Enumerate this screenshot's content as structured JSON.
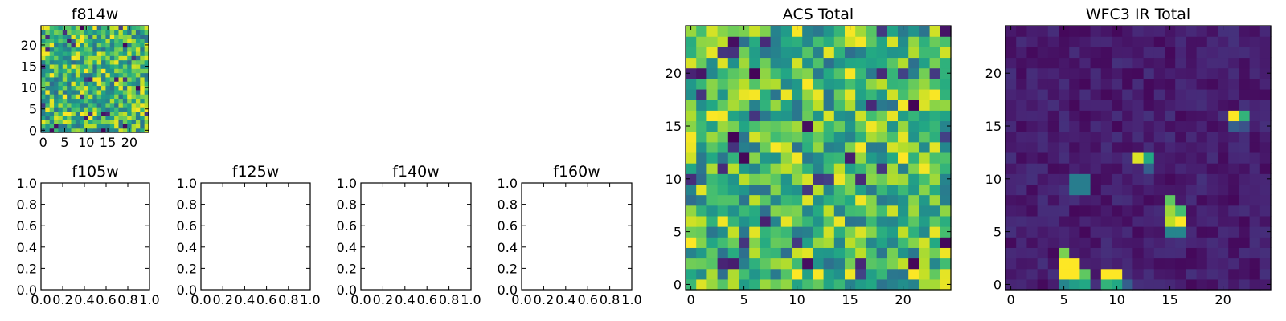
{
  "chart_data": [
    {
      "type": "heatmap",
      "title": "f814w",
      "colormap": "viridis",
      "xlim": [
        -0.5,
        24.5
      ],
      "ylim": [
        -0.5,
        24.5
      ],
      "xticks": [
        "0",
        "5",
        "10",
        "15",
        "20"
      ],
      "yticks": [
        "0",
        "5",
        "10",
        "15",
        "20"
      ],
      "grid_size": 25,
      "value_range": [
        0,
        1
      ],
      "pattern": "dense random noise, mostly high values (green/yellow) with scattered dark cells"
    },
    {
      "type": "empty",
      "title": "f105w",
      "xlim": [
        0,
        1
      ],
      "ylim": [
        0,
        1
      ],
      "xticks": [
        "0.0",
        "0.2",
        "0.4",
        "0.6",
        "0.8",
        "1.0"
      ],
      "yticks": [
        "0.0",
        "0.2",
        "0.4",
        "0.6",
        "0.8",
        "1.0"
      ]
    },
    {
      "type": "empty",
      "title": "f125w",
      "xlim": [
        0,
        1
      ],
      "ylim": [
        0,
        1
      ],
      "xticks": [
        "0.0",
        "0.2",
        "0.4",
        "0.6",
        "0.8",
        "1.0"
      ],
      "yticks": [
        "0.0",
        "0.2",
        "0.4",
        "0.6",
        "0.8",
        "1.0"
      ]
    },
    {
      "type": "empty",
      "title": "f140w",
      "xlim": [
        0,
        1
      ],
      "ylim": [
        0,
        1
      ],
      "xticks": [
        "0.0",
        "0.2",
        "0.4",
        "0.6",
        "0.8",
        "1.0"
      ],
      "yticks": [
        "0.0",
        "0.2",
        "0.4",
        "0.6",
        "0.8",
        "1.0"
      ]
    },
    {
      "type": "empty",
      "title": "f160w",
      "xlim": [
        0,
        1
      ],
      "ylim": [
        0,
        1
      ],
      "xticks": [
        "0.0",
        "0.2",
        "0.4",
        "0.6",
        "0.8",
        "1.0"
      ],
      "yticks": [
        "0.0",
        "0.2",
        "0.4",
        "0.6",
        "0.8",
        "1.0"
      ]
    },
    {
      "type": "heatmap",
      "title": "ACS Total",
      "colormap": "viridis",
      "xlim": [
        -0.5,
        24.5
      ],
      "ylim": [
        -0.5,
        24.5
      ],
      "xticks": [
        "0",
        "5",
        "10",
        "15",
        "20"
      ],
      "yticks": [
        "0",
        "5",
        "10",
        "15",
        "20"
      ],
      "grid_size": 25,
      "value_range": [
        0,
        1
      ],
      "pattern": "dense random noise, mostly high values (green/yellow) with scattered dark cells"
    },
    {
      "type": "heatmap",
      "title": "WFC3 IR Total",
      "colormap": "viridis",
      "xlim": [
        -0.5,
        24.5
      ],
      "ylim": [
        -0.5,
        24.5
      ],
      "xticks": [
        "0",
        "5",
        "10",
        "15",
        "20"
      ],
      "yticks": [
        "0",
        "5",
        "10",
        "15",
        "20"
      ],
      "grid_size": 25,
      "value_range": [
        0,
        1
      ],
      "background": "near-zero dark purple noise",
      "hotspots": [
        {
          "x": 21,
          "y": 16,
          "value": 1.0
        },
        {
          "x": 22,
          "y": 16,
          "value": 0.65
        },
        {
          "x": 21,
          "y": 15,
          "value": 0.3
        },
        {
          "x": 22,
          "y": 15,
          "value": 0.25
        },
        {
          "x": 12,
          "y": 12,
          "value": 0.95
        },
        {
          "x": 13,
          "y": 12,
          "value": 0.6
        },
        {
          "x": 13,
          "y": 11,
          "value": 0.3
        },
        {
          "x": 6,
          "y": 10,
          "value": 0.42
        },
        {
          "x": 7,
          "y": 10,
          "value": 0.42
        },
        {
          "x": 6,
          "y": 9,
          "value": 0.42
        },
        {
          "x": 7,
          "y": 9,
          "value": 0.42
        },
        {
          "x": 15,
          "y": 8,
          "value": 0.75
        },
        {
          "x": 15,
          "y": 7,
          "value": 0.85
        },
        {
          "x": 16,
          "y": 7,
          "value": 0.7
        },
        {
          "x": 15,
          "y": 6,
          "value": 0.9
        },
        {
          "x": 16,
          "y": 6,
          "value": 1.0
        },
        {
          "x": 15,
          "y": 5,
          "value": 0.45
        },
        {
          "x": 16,
          "y": 5,
          "value": 0.45
        },
        {
          "x": 5,
          "y": 3,
          "value": 0.8
        },
        {
          "x": 5,
          "y": 2,
          "value": 1.0
        },
        {
          "x": 6,
          "y": 2,
          "value": 1.0
        },
        {
          "x": 5,
          "y": 1,
          "value": 1.0
        },
        {
          "x": 6,
          "y": 1,
          "value": 1.0
        },
        {
          "x": 7,
          "y": 1,
          "value": 0.75
        },
        {
          "x": 5,
          "y": 0,
          "value": 0.45
        },
        {
          "x": 6,
          "y": 0,
          "value": 0.55
        },
        {
          "x": 7,
          "y": 0,
          "value": 0.6
        },
        {
          "x": 9,
          "y": 1,
          "value": 1.0
        },
        {
          "x": 10,
          "y": 1,
          "value": 1.0
        },
        {
          "x": 9,
          "y": 0,
          "value": 0.65
        },
        {
          "x": 10,
          "y": 0,
          "value": 0.6
        },
        {
          "x": 11,
          "y": 0,
          "value": 0.3
        }
      ]
    }
  ]
}
